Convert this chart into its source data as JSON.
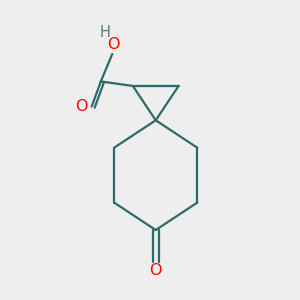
{
  "background_color": "#eeeeee",
  "bond_color": "#2d6b6b",
  "oxygen_color": "#ff0000",
  "text_color_H": "#5a7a7a",
  "line_width": 1.6,
  "fig_size": [
    3.0,
    3.0
  ],
  "dpi": 100,
  "xlim": [
    -1.1,
    1.1
  ],
  "ylim": [
    -1.5,
    1.1
  ]
}
